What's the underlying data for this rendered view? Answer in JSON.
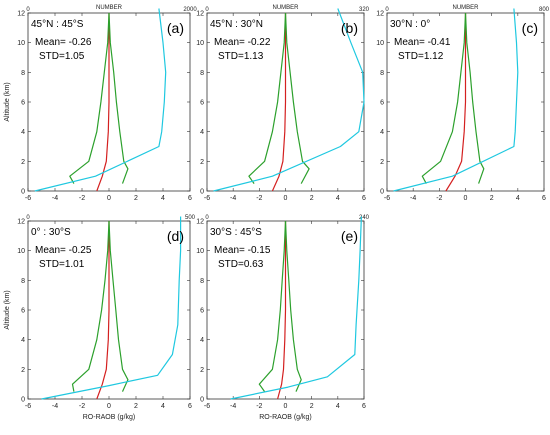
{
  "chart_data": [
    {
      "type": "line",
      "panel_label": "(a)",
      "region": "45°N : 45°S",
      "mean": "Mean= -0.26",
      "std": "STD=1.05",
      "top_axis_label": "NUMBER",
      "top_axis_max": "2000",
      "xlabel": "",
      "ylabel": "Altitude (km)",
      "xlim": [
        -6,
        6
      ],
      "ylim": [
        0,
        12
      ],
      "x_ticks": [
        "-6",
        "-4",
        "-2",
        "0",
        "2",
        "4",
        "6"
      ],
      "y_ticks": [
        "0",
        "2",
        "4",
        "6",
        "8",
        "10",
        "12"
      ],
      "series": [
        {
          "color": "#d42020",
          "x": [
            -0.9,
            -0.5,
            -0.2,
            -0.05,
            0.0,
            0.0,
            0.0
          ],
          "y": [
            0,
            1,
            2,
            4,
            6,
            8,
            12
          ]
        },
        {
          "color": "#2ca02c",
          "x": [
            -2.6,
            -2.9,
            -1.5,
            -0.9,
            -0.6,
            -0.35,
            -0.1,
            0
          ],
          "y": [
            0.5,
            1,
            2,
            4,
            6,
            8,
            10,
            12
          ]
        },
        {
          "color": "#2ca02c",
          "x": [
            1.0,
            1.4,
            1.1,
            0.8,
            0.55,
            0.35,
            0.1,
            0
          ],
          "y": [
            0.5,
            1.5,
            2,
            4,
            6,
            8,
            10,
            12
          ]
        },
        {
          "color": "#1fc8e0",
          "x": [
            -5.5,
            -1.0,
            3.7,
            3.9,
            4.1,
            4.2,
            4.0,
            3.7
          ],
          "y": [
            0,
            1,
            3,
            4,
            6,
            8,
            10,
            12.3
          ]
        }
      ]
    },
    {
      "type": "line",
      "panel_label": "(b)",
      "region": "45°N : 30°N",
      "mean": "Mean= -0.22",
      "std": "STD=1.13",
      "top_axis_label": "NUMBER",
      "top_axis_max": "320",
      "xlabel": "",
      "ylabel": "",
      "xlim": [
        -6,
        6
      ],
      "ylim": [
        0,
        12
      ],
      "x_ticks": [
        "-6",
        "-4",
        "-2",
        "0",
        "2",
        "4",
        "6"
      ],
      "y_ticks": [
        "0",
        "2",
        "4",
        "6",
        "8",
        "10",
        "12"
      ],
      "series": [
        {
          "color": "#d42020",
          "x": [
            -1.0,
            -0.5,
            -0.2,
            -0.05,
            0.0,
            0.0,
            0.0
          ],
          "y": [
            0,
            1,
            2,
            4,
            6,
            8,
            12
          ]
        },
        {
          "color": "#2ca02c",
          "x": [
            -2.4,
            -2.8,
            -1.6,
            -1.0,
            -0.6,
            -0.35,
            -0.1,
            0
          ],
          "y": [
            0.5,
            1,
            2,
            4,
            6,
            8,
            10,
            12
          ]
        },
        {
          "color": "#2ca02c",
          "x": [
            1.2,
            1.8,
            1.3,
            0.9,
            0.6,
            0.35,
            0.1,
            0
          ],
          "y": [
            0.5,
            1.5,
            2,
            4,
            6,
            8,
            10,
            12
          ]
        },
        {
          "color": "#1fc8e0",
          "x": [
            -5.5,
            -1.0,
            4.2,
            5.6,
            6.0,
            5.9,
            5.0,
            4.0
          ],
          "y": [
            0,
            1,
            3,
            4,
            6,
            8,
            10,
            12.3
          ]
        }
      ]
    },
    {
      "type": "line",
      "panel_label": "(c)",
      "region": "30°N : 0°",
      "mean": "Mean= -0.41",
      "std": "STD=1.12",
      "top_axis_label": "NUMBER",
      "top_axis_max": "800",
      "xlabel": "",
      "ylabel": "",
      "xlim": [
        -6,
        6
      ],
      "ylim": [
        0,
        12
      ],
      "x_ticks": [
        "-6",
        "-4",
        "-2",
        "0",
        "2",
        "4",
        "6"
      ],
      "y_ticks": [
        "0",
        "2",
        "4",
        "6",
        "8",
        "10",
        "12"
      ],
      "series": [
        {
          "color": "#d42020",
          "x": [
            -1.5,
            -0.8,
            -0.3,
            -0.1,
            0.0,
            0.0,
            0.0
          ],
          "y": [
            0,
            1,
            2,
            4,
            6,
            8,
            12
          ]
        },
        {
          "color": "#2ca02c",
          "x": [
            -3.0,
            -3.3,
            -1.9,
            -1.0,
            -0.6,
            -0.35,
            -0.1,
            0
          ],
          "y": [
            0.5,
            1,
            2,
            4,
            6,
            8,
            10,
            12
          ]
        },
        {
          "color": "#2ca02c",
          "x": [
            1.0,
            1.4,
            1.1,
            0.8,
            0.55,
            0.35,
            0.1,
            0
          ],
          "y": [
            0.5,
            1.5,
            2,
            4,
            6,
            8,
            10,
            12
          ]
        },
        {
          "color": "#1fc8e0",
          "x": [
            -5.5,
            -1.0,
            3.7,
            3.8,
            3.9,
            4.0,
            3.9,
            3.7
          ],
          "y": [
            0,
            1,
            3,
            4,
            6,
            8,
            10,
            12.3
          ]
        }
      ]
    },
    {
      "type": "line",
      "panel_label": "(d)",
      "region": "0° : 30°S",
      "mean": "Mean= -0.25",
      "std": "STD=1.01",
      "top_axis_label": "",
      "top_axis_max": "500",
      "xlabel": "RO-RAOB (g/kg)",
      "ylabel": "Altitude (km)",
      "xlim": [
        -6,
        6
      ],
      "ylim": [
        0,
        12
      ],
      "x_ticks": [
        "-6",
        "-4",
        "-2",
        "0",
        "2",
        "4",
        "6"
      ],
      "y_ticks": [
        "0",
        "2",
        "4",
        "6",
        "8",
        "10",
        "12"
      ],
      "series": [
        {
          "color": "#d42020",
          "x": [
            -0.9,
            -0.5,
            -0.2,
            -0.05,
            0.0,
            0.0,
            0.0
          ],
          "y": [
            0,
            1,
            2,
            4,
            6,
            8,
            12
          ]
        },
        {
          "color": "#2ca02c",
          "x": [
            -2.6,
            -2.7,
            -1.5,
            -0.9,
            -0.55,
            -0.3,
            -0.1,
            0
          ],
          "y": [
            0.5,
            1,
            2,
            4,
            6,
            8,
            10,
            12
          ]
        },
        {
          "color": "#2ca02c",
          "x": [
            1.0,
            1.4,
            1.0,
            0.7,
            0.5,
            0.3,
            0.1,
            0
          ],
          "y": [
            0.5,
            1.3,
            2,
            4,
            6,
            8,
            10,
            12
          ]
        },
        {
          "color": "#1fc8e0",
          "x": [
            -5.0,
            0.0,
            3.6,
            4.7,
            5.1,
            5.2,
            5.3,
            5.3
          ],
          "y": [
            0,
            0.9,
            1.6,
            3,
            5,
            8,
            10,
            12.3
          ]
        }
      ]
    },
    {
      "type": "line",
      "panel_label": "(e)",
      "region": "30°S : 45°S",
      "mean": "Mean= -0.15",
      "std": "STD=0.63",
      "top_axis_label": "",
      "top_axis_max": "240",
      "xlabel": "RO-RAOB (g/kg)",
      "ylabel": "",
      "xlim": [
        -6,
        6
      ],
      "ylim": [
        0,
        12
      ],
      "x_ticks": [
        "-6",
        "-4",
        "-2",
        "0",
        "2",
        "4",
        "6"
      ],
      "y_ticks": [
        "0",
        "2",
        "4",
        "6",
        "8",
        "10",
        "12"
      ],
      "series": [
        {
          "color": "#d42020",
          "x": [
            -0.6,
            -0.3,
            -0.15,
            -0.05,
            0.0,
            0.0,
            0.0
          ],
          "y": [
            0,
            1,
            2,
            4,
            6,
            8,
            12
          ]
        },
        {
          "color": "#2ca02c",
          "x": [
            -1.6,
            -2.0,
            -1.0,
            -0.6,
            -0.4,
            -0.25,
            -0.1,
            0
          ],
          "y": [
            0.5,
            1,
            2,
            4,
            6,
            8,
            10,
            12
          ]
        },
        {
          "color": "#2ca02c",
          "x": [
            0.8,
            1.2,
            0.9,
            0.6,
            0.4,
            0.25,
            0.1,
            0
          ],
          "y": [
            0.5,
            1.3,
            2,
            4,
            6,
            8,
            10,
            12
          ]
        },
        {
          "color": "#1fc8e0",
          "x": [
            -4.2,
            0.2,
            3.2,
            5.3,
            5.4,
            5.6,
            5.7,
            5.8
          ],
          "y": [
            0,
            0.8,
            1.5,
            3,
            5,
            8,
            10,
            12.3
          ]
        }
      ]
    }
  ]
}
